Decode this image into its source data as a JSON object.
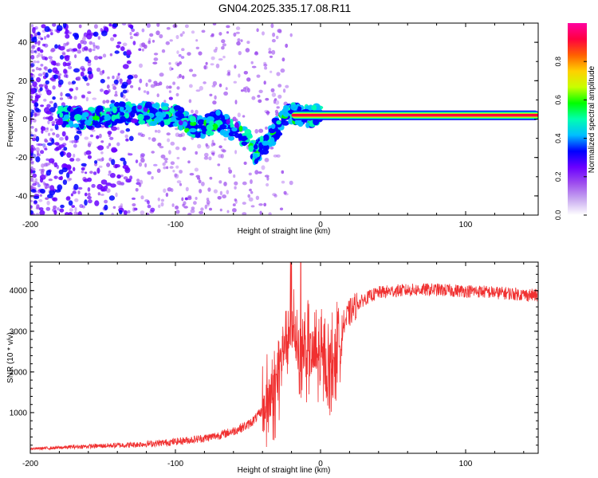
{
  "figure_title": "GN04.2025.335.17.08.R11",
  "colors": {
    "snr_line": "#f03030",
    "colormap": [
      "#ffffff",
      "#c8a8f0",
      "#9d4dee",
      "#6a00ff",
      "#0000ff",
      "#00bfff",
      "#00ffb0",
      "#00ff00",
      "#c8ff00",
      "#ffd000",
      "#ff6000",
      "#ff0040",
      "#ff00a0"
    ]
  },
  "chart_data": [
    {
      "type": "heatmap",
      "id": "spectrogram",
      "title": "",
      "xlabel": "Height of straight line (km)",
      "ylabel": "Frequency (Hz)",
      "xlim": [
        -200,
        150
      ],
      "ylim": [
        -50,
        50
      ],
      "xticks": [
        -200,
        -100,
        0,
        100
      ],
      "yticks": [
        -40,
        -20,
        0,
        20,
        40
      ],
      "colorbar": {
        "label": "Normalized spectral amplitude",
        "range": [
          0,
          1
        ],
        "ticks": [
          0.0,
          0.2,
          0.4,
          0.6,
          0.8
        ]
      },
      "description_points": {
        "stable_tone": {
          "x_start": -20,
          "x_end": 150,
          "frequency": 2,
          "amplitude": 0.95
        },
        "doppler_trace": [
          {
            "x": -180,
            "y": 1
          },
          {
            "x": -160,
            "y": 0
          },
          {
            "x": -140,
            "y": 3
          },
          {
            "x": -120,
            "y": 3
          },
          {
            "x": -100,
            "y": 2
          },
          {
            "x": -90,
            "y": -3
          },
          {
            "x": -80,
            "y": -4
          },
          {
            "x": -70,
            "y": -1
          },
          {
            "x": -60,
            "y": -6
          },
          {
            "x": -50,
            "y": -10
          },
          {
            "x": -45,
            "y": -18
          },
          {
            "x": -40,
            "y": -14
          },
          {
            "x": -35,
            "y": -10
          },
          {
            "x": -30,
            "y": -4
          },
          {
            "x": -25,
            "y": 2
          },
          {
            "x": -20,
            "y": 3
          },
          {
            "x": -10,
            "y": 1
          },
          {
            "x": 0,
            "y": 3
          }
        ]
      }
    },
    {
      "type": "line",
      "id": "snr",
      "title": "",
      "xlabel": "Height of straight line (km)",
      "ylabel": "SNR (10 * v/v)",
      "xlim": [
        -200,
        150
      ],
      "ylim": [
        0,
        4700
      ],
      "xticks": [
        -200,
        -100,
        0,
        100
      ],
      "yticks": [
        1000,
        2000,
        3000,
        4000
      ],
      "series": [
        {
          "name": "SNR",
          "x": [
            -200,
            -190,
            -180,
            -170,
            -160,
            -150,
            -140,
            -130,
            -120,
            -110,
            -100,
            -90,
            -80,
            -70,
            -60,
            -50,
            -45,
            -40,
            -35,
            -30,
            -25,
            -20,
            -15,
            -10,
            -5,
            0,
            5,
            10,
            15,
            20,
            25,
            30,
            35,
            40,
            50,
            60,
            70,
            80,
            90,
            100,
            110,
            120,
            130,
            140,
            150
          ],
          "values": [
            100,
            110,
            120,
            140,
            150,
            160,
            170,
            180,
            200,
            220,
            250,
            290,
            330,
            400,
            500,
            650,
            800,
            1000,
            1300,
            1700,
            2800,
            3200,
            2600,
            2500,
            2400,
            2300,
            2100,
            2400,
            3100,
            3450,
            3650,
            3780,
            3880,
            3950,
            3990,
            4010,
            4020,
            4020,
            4000,
            3990,
            3980,
            3950,
            3930,
            3900,
            3880
          ]
        }
      ]
    }
  ]
}
